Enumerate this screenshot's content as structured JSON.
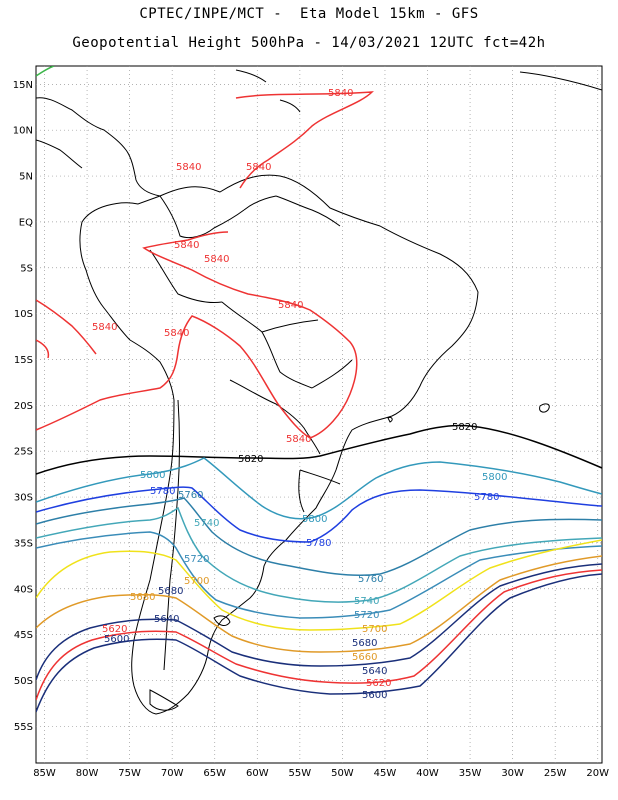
{
  "header": {
    "line1": "CPTEC/INPE/MCT -  Eta Model 15km - GFS",
    "line2": "Geopotential Height 500hPa - 14/03/2021 12UTC fct=42h"
  },
  "axes": {
    "lat_labels": [
      "15N",
      "10N",
      "5N",
      "EQ",
      "5S",
      "10S",
      "15S",
      "20S",
      "25S",
      "30S",
      "35S",
      "40S",
      "45S",
      "50S",
      "55S"
    ],
    "lon_labels": [
      "85W",
      "80W",
      "75W",
      "70W",
      "65W",
      "60W",
      "55W",
      "50W",
      "45W",
      "40W",
      "35W",
      "30W",
      "25W",
      "20W"
    ],
    "lat_range": [
      17,
      -59
    ],
    "lon_range": [
      -86,
      -19.5
    ],
    "grid": "dotted"
  },
  "contours": [
    {
      "value": "5840",
      "color": "#ee3333"
    },
    {
      "value": "5820",
      "color": "#000000"
    },
    {
      "value": "5800",
      "color": "#3399bb"
    },
    {
      "value": "5780",
      "color": "#1f3fe0"
    },
    {
      "value": "5760",
      "color": "#2d7fa8"
    },
    {
      "value": "5740",
      "color": "#43a7b8"
    },
    {
      "value": "5720",
      "color": "#3a8cb8"
    },
    {
      "value": "5700",
      "color": "#f0e21a"
    },
    {
      "value": "5680",
      "color": "#e09a28"
    },
    {
      "value": "5660",
      "color": "#e09a28"
    },
    {
      "value": "5640",
      "color": "#1a2f7a"
    },
    {
      "value": "5620",
      "color": "#ee3333"
    },
    {
      "value": "5600",
      "color": "#1a2f7a"
    }
  ]
}
